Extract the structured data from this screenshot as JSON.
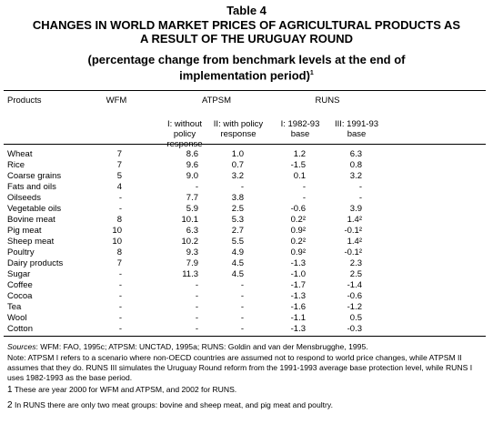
{
  "header": {
    "label": "Table 4",
    "title": "CHANGES IN WORLD MARKET PRICES OF AGRICULTURAL PRODUCTS AS A RESULT OF THE URUGUAY ROUND",
    "subtitle": "(percentage change from benchmark levels at the end of implementation period)",
    "subtitle_note": "1"
  },
  "table": {
    "groups": [
      "Products",
      "WFM",
      "ATPSM",
      "RUNS"
    ],
    "columns": [
      "I: without policy response",
      "II: with policy response",
      "I: 1982-93 base",
      "III: 1991-93 base"
    ],
    "rows": [
      [
        "Wheat",
        "7",
        "8.6",
        "1.0",
        "1.2",
        "6.3"
      ],
      [
        "Rice",
        "7",
        "9.6",
        "0.7",
        "-1.5",
        "0.8"
      ],
      [
        "Coarse grains",
        "5",
        "9.0",
        "3.2",
        "0.1",
        "3.2"
      ],
      [
        "Fats and oils",
        "4",
        "-",
        "-",
        "-",
        "-"
      ],
      [
        "Oilseeds",
        "-",
        "7.7",
        "3.8",
        "-",
        "-"
      ],
      [
        "Vegetable oils",
        "-",
        "5.9",
        "2.5",
        "-0.6",
        "3.9"
      ],
      [
        "Bovine meat",
        "8",
        "10.1",
        "5.3",
        "0.2²",
        "1.4²"
      ],
      [
        "Pig meat",
        "10",
        "6.3",
        "2.7",
        "0.9²",
        "-0.1²"
      ],
      [
        "Sheep meat",
        "10",
        "10.2",
        "5.5",
        "0.2²",
        "1.4²"
      ],
      [
        "Poultry",
        "8",
        "9.3",
        "4.9",
        "0.9²",
        "-0.1²"
      ],
      [
        "Dairy products",
        "7",
        "7.9",
        "4.5",
        "-1.3",
        "2.3"
      ],
      [
        "Sugar",
        "-",
        "11.3",
        "4.5",
        "-1.0",
        "2.5"
      ],
      [
        "Coffee",
        "-",
        "-",
        "-",
        "-1.7",
        "-1.4"
      ],
      [
        "Cocoa",
        "-",
        "-",
        "-",
        "-1.3",
        "-0.6"
      ],
      [
        "Tea",
        "-",
        "-",
        "-",
        "-1.6",
        "-1.2"
      ],
      [
        "Wool",
        "-",
        "-",
        "-",
        "-1.1",
        "0.5"
      ],
      [
        "Cotton",
        "-",
        "-",
        "-",
        "-1.3",
        "-0.3"
      ]
    ]
  },
  "notes": {
    "sources_label": "Sources",
    "sources": ": WFM: FAO, 1995c; ATPSM: UNCTAD, 1995a; RUNS: Goldin and van der Mensbrugghe, 1995.",
    "note": "Note: ATPSM I refers to a scenario where non-OECD countries are assumed not to respond to world price changes, while ATPSM II assumes that they do. RUNS III simulates the Uruguay Round reform from the 1991-1993 average base protection level, while RUNS I uses 1982-1993 as the base period.",
    "footnotes": [
      {
        "mark": "1",
        "text": "These are year 2000 for WFM and ATPSM, and 2002 for RUNS."
      },
      {
        "mark": "2",
        "text": "In RUNS there are only two meat groups: bovine and sheep meat, and pig meat and poultry."
      }
    ]
  }
}
